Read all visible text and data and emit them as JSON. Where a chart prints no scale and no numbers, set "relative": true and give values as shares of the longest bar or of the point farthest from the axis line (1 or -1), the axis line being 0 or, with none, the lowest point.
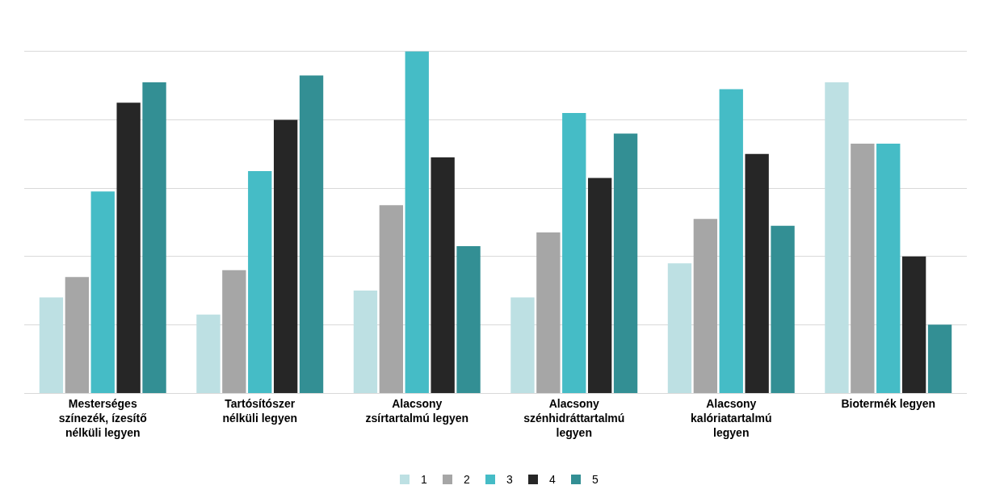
{
  "chart_data": {
    "type": "bar",
    "relative": true,
    "grid": "y",
    "legend": "bottom",
    "categories": [
      "Mesterséges színezék, ízesítő nélküli legyen",
      "Tartósítószer nélküli legyen",
      "Alacsony zsírtartalmú legyen",
      "Alacsony szénhidráttartalmú legyen",
      "Alacsony kalóriatartalmú legyen",
      "Biotermék legyen"
    ],
    "series": [
      {
        "name": "1",
        "color": "#bde0e3",
        "values": [
          0.28,
          0.23,
          0.3,
          0.28,
          0.38,
          0.91
        ]
      },
      {
        "name": "2",
        "color": "#a6a6a6",
        "values": [
          0.34,
          0.36,
          0.55,
          0.47,
          0.51,
          0.73
        ]
      },
      {
        "name": "3",
        "color": "#45bcc6",
        "values": [
          0.59,
          0.65,
          1,
          0.82,
          0.89,
          0.73
        ]
      },
      {
        "name": "4",
        "color": "#262626",
        "values": [
          0.85,
          0.8,
          0.69,
          0.63,
          0.7,
          0.4
        ]
      },
      {
        "name": "5",
        "color": "#338f94",
        "values": [
          0.91,
          0.93,
          0.43,
          0.76,
          0.49,
          0.2
        ]
      }
    ]
  }
}
